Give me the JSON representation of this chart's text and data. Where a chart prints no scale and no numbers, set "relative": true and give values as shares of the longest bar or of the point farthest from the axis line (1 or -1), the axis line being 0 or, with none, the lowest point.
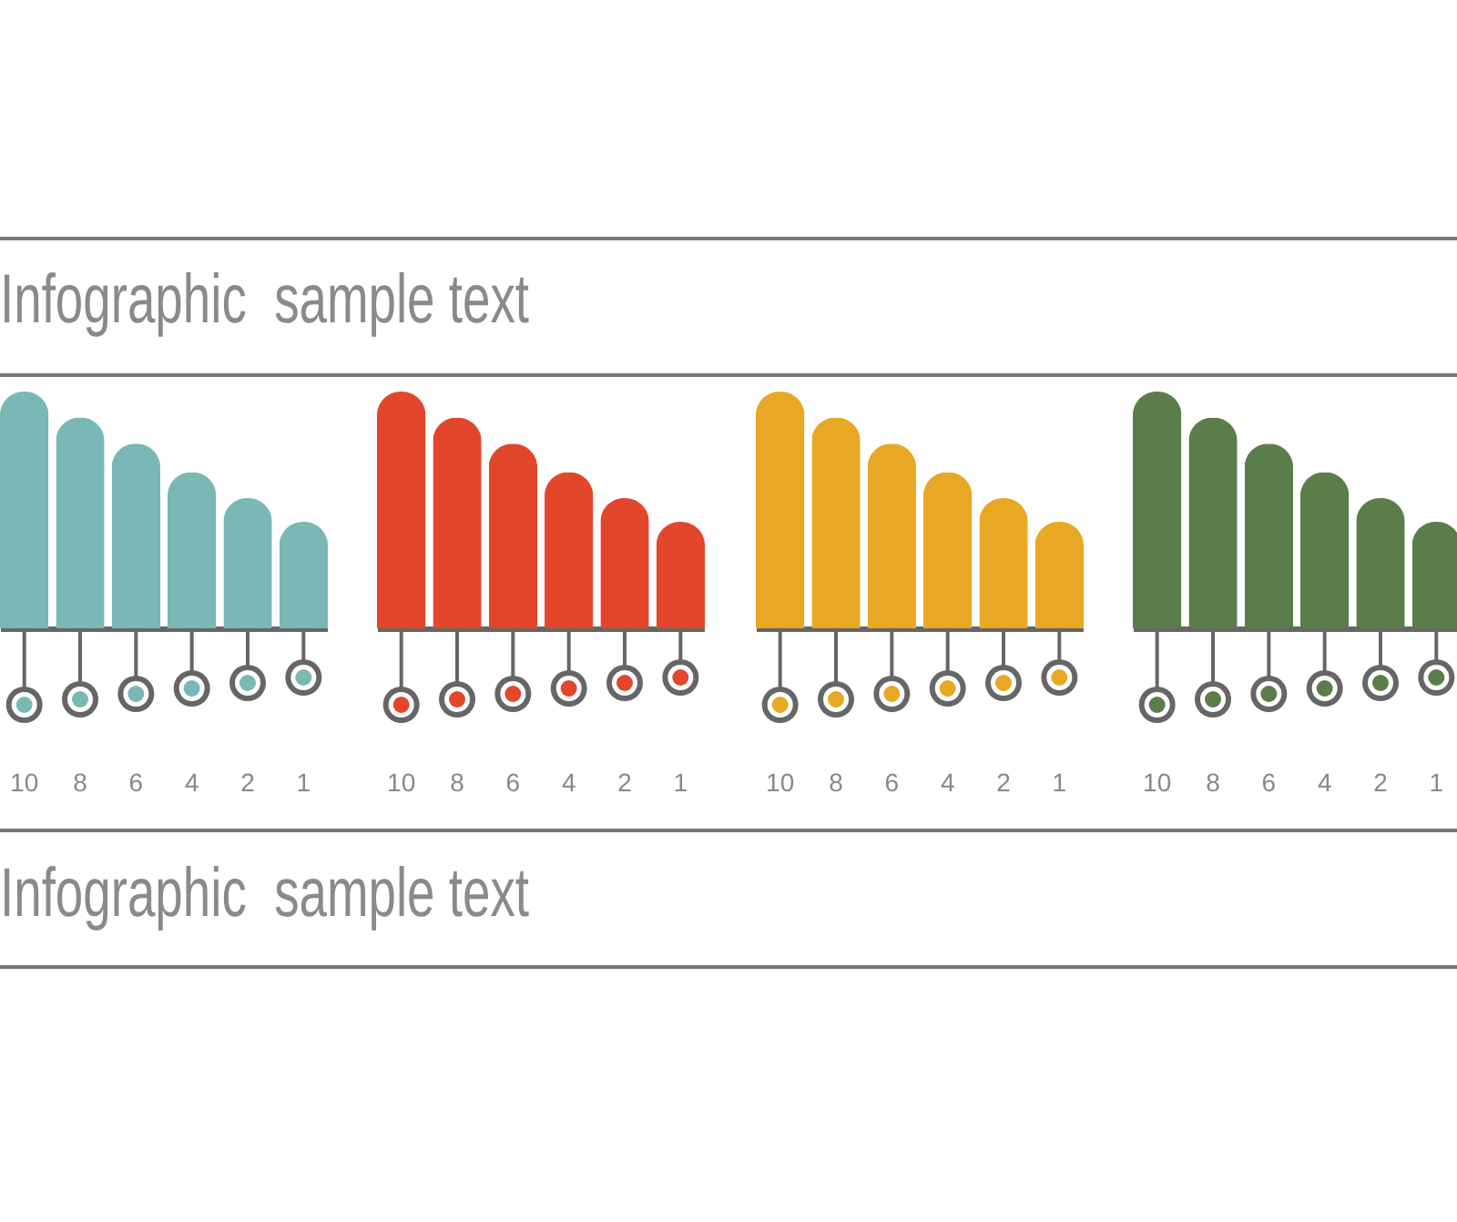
{
  "chart_data": [
    {
      "type": "bar",
      "title": "Infographic  sample text",
      "categories": [
        "10",
        "8",
        "6",
        "4",
        "2",
        "1"
      ],
      "values": [
        1,
        0.89,
        0.78,
        0.66,
        0.55,
        0.45
      ],
      "color": "#7ab8b5",
      "relative": true
    },
    {
      "type": "bar",
      "categories": [
        "10",
        "8",
        "6",
        "4",
        "2",
        "1"
      ],
      "values": [
        1,
        0.89,
        0.78,
        0.66,
        0.55,
        0.45
      ],
      "color": "#e2472b",
      "relative": true
    },
    {
      "type": "bar",
      "categories": [
        "10",
        "8",
        "6",
        "4",
        "2",
        "1"
      ],
      "values": [
        1,
        0.89,
        0.78,
        0.66,
        0.55,
        0.45
      ],
      "color": "#e8a823",
      "relative": true
    },
    {
      "type": "bar",
      "categories": [
        "10",
        "8",
        "6",
        "4",
        "2",
        "1"
      ],
      "values": [
        1,
        0.89,
        0.78,
        0.66,
        0.55,
        0.45
      ],
      "color": "#5a7d4a",
      "relative": true,
      "annotations": [
        "Infographic  sample text"
      ]
    }
  ]
}
